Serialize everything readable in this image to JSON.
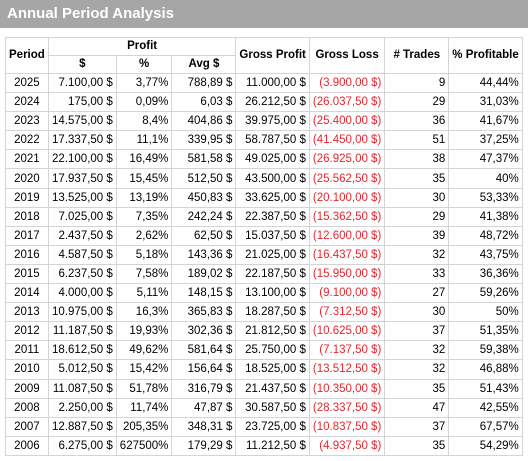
{
  "title": "Annual Period Analysis",
  "headers": {
    "period": "Period",
    "profit": "Profit",
    "profit_usd": "$",
    "profit_pct": "%",
    "avg": "Avg $",
    "gross_profit": "Gross Profit",
    "gross_loss": "Gross Loss",
    "trades": "# Trades",
    "pct_profitable": "% Profitable"
  },
  "rows": [
    {
      "year": "2025",
      "profit": "7.100,00 $",
      "pct": "3,77%",
      "avg": "788,89 $",
      "gp": "11.000,00 $",
      "gl": "(3.900,00 $)",
      "trades": "9",
      "prof": "44,44%"
    },
    {
      "year": "2024",
      "profit": "175,00 $",
      "pct": "0,09%",
      "avg": "6,03 $",
      "gp": "26.212,50 $",
      "gl": "(26.037,50 $)",
      "trades": "29",
      "prof": "31,03%"
    },
    {
      "year": "2023",
      "profit": "14.575,00 $",
      "pct": "8,4%",
      "avg": "404,86 $",
      "gp": "39.975,00 $",
      "gl": "(25.400,00 $)",
      "trades": "36",
      "prof": "41,67%"
    },
    {
      "year": "2022",
      "profit": "17.337,50 $",
      "pct": "11,1%",
      "avg": "339,95 $",
      "gp": "58.787,50 $",
      "gl": "(41.450,00 $)",
      "trades": "51",
      "prof": "37,25%"
    },
    {
      "year": "2021",
      "profit": "22.100,00 $",
      "pct": "16,49%",
      "avg": "581,58 $",
      "gp": "49.025,00 $",
      "gl": "(26.925,00 $)",
      "trades": "38",
      "prof": "47,37%"
    },
    {
      "year": "2020",
      "profit": "17.937,50 $",
      "pct": "15,45%",
      "avg": "512,50 $",
      "gp": "43.500,00 $",
      "gl": "(25.562,50 $)",
      "trades": "35",
      "prof": "40%"
    },
    {
      "year": "2019",
      "profit": "13.525,00 $",
      "pct": "13,19%",
      "avg": "450,83 $",
      "gp": "33.625,00 $",
      "gl": "(20.100,00 $)",
      "trades": "30",
      "prof": "53,33%"
    },
    {
      "year": "2018",
      "profit": "7.025,00 $",
      "pct": "7,35%",
      "avg": "242,24 $",
      "gp": "22.387,50 $",
      "gl": "(15.362,50 $)",
      "trades": "29",
      "prof": "41,38%"
    },
    {
      "year": "2017",
      "profit": "2.437,50 $",
      "pct": "2,62%",
      "avg": "62,50 $",
      "gp": "15.037,50 $",
      "gl": "(12.600,00 $)",
      "trades": "39",
      "prof": "48,72%"
    },
    {
      "year": "2016",
      "profit": "4.587,50 $",
      "pct": "5,18%",
      "avg": "143,36 $",
      "gp": "21.025,00 $",
      "gl": "(16.437,50 $)",
      "trades": "32",
      "prof": "43,75%"
    },
    {
      "year": "2015",
      "profit": "6.237,50 $",
      "pct": "7,58%",
      "avg": "189,02 $",
      "gp": "22.187,50 $",
      "gl": "(15.950,00 $)",
      "trades": "33",
      "prof": "36,36%"
    },
    {
      "year": "2014",
      "profit": "4.000,00 $",
      "pct": "5,11%",
      "avg": "148,15 $",
      "gp": "13.100,00 $",
      "gl": "(9.100,00 $)",
      "trades": "27",
      "prof": "59,26%"
    },
    {
      "year": "2013",
      "profit": "10.975,00 $",
      "pct": "16,3%",
      "avg": "365,83 $",
      "gp": "18.287,50 $",
      "gl": "(7.312,50 $)",
      "trades": "30",
      "prof": "50%"
    },
    {
      "year": "2012",
      "profit": "11.187,50 $",
      "pct": "19,93%",
      "avg": "302,36 $",
      "gp": "21.812,50 $",
      "gl": "(10.625,00 $)",
      "trades": "37",
      "prof": "51,35%"
    },
    {
      "year": "2011",
      "profit": "18.612,50 $",
      "pct": "49,62%",
      "avg": "581,64 $",
      "gp": "25.750,00 $",
      "gl": "(7.137,50 $)",
      "trades": "32",
      "prof": "59,38%"
    },
    {
      "year": "2010",
      "profit": "5.012,50 $",
      "pct": "15,42%",
      "avg": "156,64 $",
      "gp": "18.525,00 $",
      "gl": "(13.512,50 $)",
      "trades": "32",
      "prof": "46,88%"
    },
    {
      "year": "2009",
      "profit": "11.087,50 $",
      "pct": "51,78%",
      "avg": "316,79 $",
      "gp": "21.437,50 $",
      "gl": "(10.350,00 $)",
      "trades": "35",
      "prof": "51,43%"
    },
    {
      "year": "2008",
      "profit": "2.250,00 $",
      "pct": "11,74%",
      "avg": "47,87 $",
      "gp": "30.587,50 $",
      "gl": "(28.337,50 $)",
      "trades": "47",
      "prof": "42,55%"
    },
    {
      "year": "2007",
      "profit": "12.887,50 $",
      "pct": "205,35%",
      "avg": "348,31 $",
      "gp": "23.725,00 $",
      "gl": "(10.837,50 $)",
      "trades": "37",
      "prof": "67,57%"
    },
    {
      "year": "2006",
      "profit": "6.275,00 $",
      "pct": "627500%",
      "avg": "179,29 $",
      "gp": "11.212,50 $",
      "gl": "(4.937,50 $)",
      "trades": "35",
      "prof": "54,29%"
    }
  ],
  "colors": {
    "title_bar": "#a6a6a6",
    "title_text": "#ffffff",
    "negative": "#e8262f",
    "grid": "#d4d4d4"
  }
}
